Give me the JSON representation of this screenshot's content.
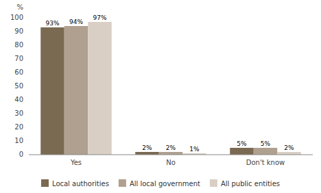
{
  "chart_data": {
    "type": "bar",
    "y_label": "%",
    "categories": [
      "Yes",
      "No",
      "Don't know"
    ],
    "series": [
      {
        "name": "Local authorities",
        "color": "#7a6a52",
        "values": [
          93,
          2,
          5
        ],
        "value_labels": [
          "93%",
          "2%",
          "5%"
        ]
      },
      {
        "name": "All local government",
        "color": "#b0a090",
        "values": [
          94,
          2,
          5
        ],
        "value_labels": [
          "94%",
          "2%",
          "5%"
        ]
      },
      {
        "name": "All public entities",
        "color": "#d9cfc4",
        "values": [
          97,
          1,
          2
        ],
        "value_labels": [
          "97%",
          "1%",
          "2%"
        ]
      }
    ],
    "ylim": [
      0,
      100
    ],
    "yticks": [
      0,
      10,
      20,
      30,
      40,
      50,
      60,
      70,
      80,
      90,
      100
    ],
    "grid": false,
    "legend": "bottom",
    "data_labels": true
  }
}
